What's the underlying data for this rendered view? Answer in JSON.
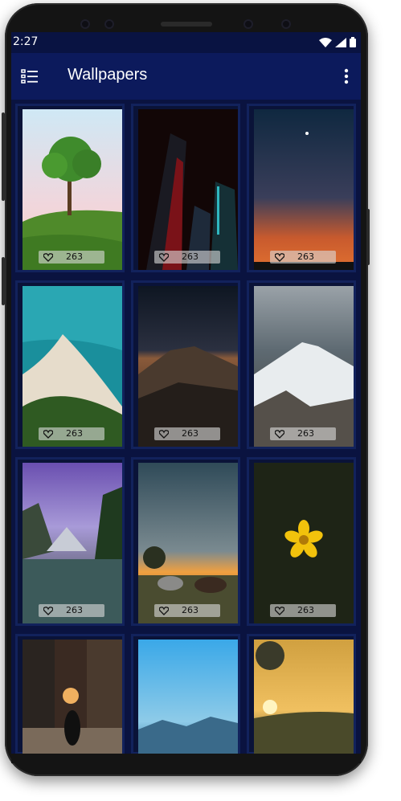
{
  "status_bar": {
    "time": "2:27"
  },
  "app_bar": {
    "title": "Wallpapers"
  },
  "wallpapers": [
    {
      "likes": "263",
      "icon": "heart-outline"
    },
    {
      "likes": "263",
      "icon": "heart-outline"
    },
    {
      "likes": "263",
      "icon": "heart-outline"
    },
    {
      "likes": "263",
      "icon": "heart-outline"
    },
    {
      "likes": "263",
      "icon": "heart-outline"
    },
    {
      "likes": "263",
      "icon": "heart-outline"
    },
    {
      "likes": "263",
      "icon": "heart-outline"
    },
    {
      "likes": "263",
      "icon": "heart-outline"
    },
    {
      "likes": "263",
      "icon": "heart-outline"
    }
  ],
  "colors": {
    "status_bar": "#091342",
    "app_bar": "#0c1a5c",
    "background": "#0a1340",
    "card_border": "#12225c"
  }
}
